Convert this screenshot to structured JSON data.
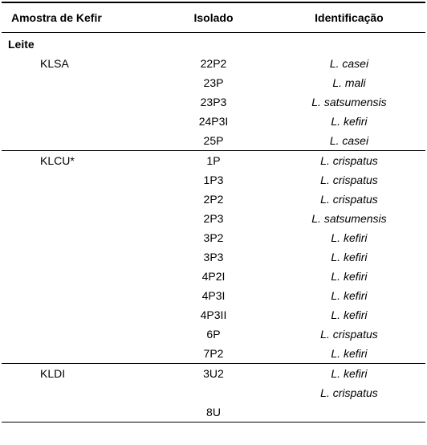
{
  "table": {
    "columns": [
      "Amostra de Kefir",
      "Isolado",
      "Identificação"
    ],
    "section_label": "Leite",
    "col_widths": [
      "36%",
      "28%",
      "36%"
    ],
    "groups": [
      {
        "sample": "KLSA",
        "rows": [
          {
            "isolado": "22P2",
            "ident": "L. casei"
          },
          {
            "isolado": "23P",
            "ident": "L. mali"
          },
          {
            "isolado": "23P3",
            "ident": "L. satsumensis"
          },
          {
            "isolado": "24P3I",
            "ident": "L. kefiri"
          },
          {
            "isolado": "25P",
            "ident": "L. casei"
          }
        ]
      },
      {
        "sample": "KLCU*",
        "rows": [
          {
            "isolado": "1P",
            "ident": "L. crispatus"
          },
          {
            "isolado": "1P3",
            "ident": "L. crispatus"
          },
          {
            "isolado": "2P2",
            "ident": "L. crispatus"
          },
          {
            "isolado": "2P3",
            "ident": "L. satsumensis"
          },
          {
            "isolado": "3P2",
            "ident": "L. kefiri"
          },
          {
            "isolado": "3P3",
            "ident": "L. kefiri"
          },
          {
            "isolado": "4P2I",
            "ident": "L. kefiri"
          },
          {
            "isolado": "4P3I",
            "ident": "L. kefiri"
          },
          {
            "isolado": "4P3II",
            "ident": "L. kefiri"
          },
          {
            "isolado": "6P",
            "ident": "L. crispatus"
          },
          {
            "isolado": "7P2",
            "ident": "L. kefiri"
          }
        ]
      },
      {
        "sample": "KLDI",
        "rows": [
          {
            "isolado": "3U2",
            "ident": "L. kefiri"
          },
          {
            "isolado": "",
            "ident": "L. crispatus"
          },
          {
            "isolado": "8U",
            "ident": ""
          }
        ]
      }
    ],
    "styles": {
      "header_border_top": "2px solid #000000",
      "header_border_bottom": "1px solid #000000",
      "group_border": "1px solid #000000",
      "font_family": "Arial",
      "font_size_pt": 10.5,
      "background": "#ffffff",
      "text_color": "#000000"
    }
  }
}
